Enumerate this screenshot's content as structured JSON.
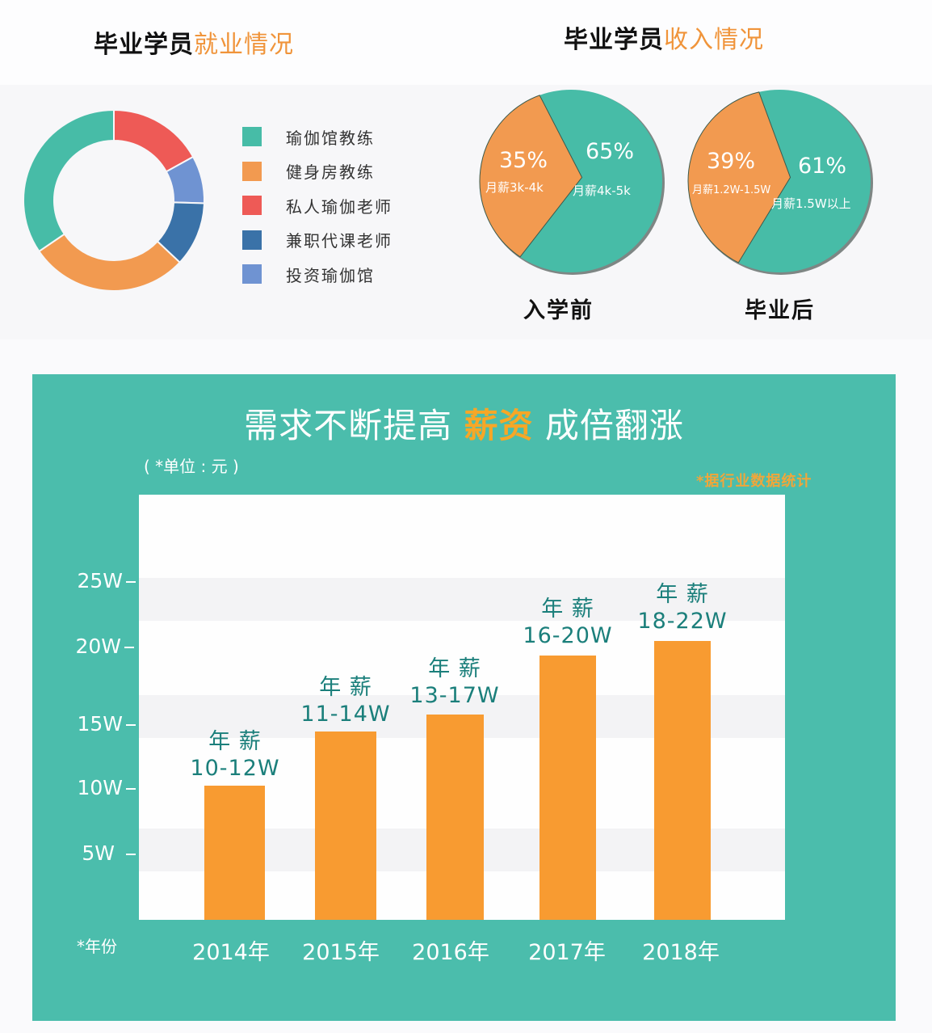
{
  "employment": {
    "title_prefix": "毕业学员",
    "title_highlight": "就业情况",
    "legend": [
      {
        "label": "瑜伽馆教练",
        "color": "#47bca7"
      },
      {
        "label": "健身房教练",
        "color": "#f29a50"
      },
      {
        "label": "私人瑜伽老师",
        "color": "#ee5a56"
      },
      {
        "label": "兼职代课老师",
        "color": "#3a72a8"
      },
      {
        "label": "投资瑜伽馆",
        "color": "#6f93d2"
      }
    ]
  },
  "income": {
    "title_prefix": "毕业学员",
    "title_highlight": "收入情况",
    "before": {
      "caption": "入学前",
      "slices": [
        {
          "pct": "35%",
          "label": "月薪3k-4k",
          "color": "#f29a50"
        },
        {
          "pct": "65%",
          "label": "月薪4k-5k",
          "color": "#47bca7"
        }
      ]
    },
    "after": {
      "caption": "毕业后",
      "slices": [
        {
          "pct": "39%",
          "label": "月薪1.2W-1.5W",
          "color": "#f29a50"
        },
        {
          "pct": "61%",
          "label": "月薪1.5W以上",
          "color": "#47bca7"
        }
      ]
    }
  },
  "salary": {
    "title_part1": "需求不断提高 ",
    "title_highlight": "薪资",
    "title_part2": " 成倍翻涨",
    "unit": "( *单位 : 元 )",
    "source": "*据行业数据统计",
    "x_axis_title": "*年份",
    "bar_color": "#f89b31",
    "panel_color": "#4bbdac",
    "label_prefix": "年 薪"
  },
  "chart_data": [
    {
      "type": "pie",
      "title": "毕业学员就业情况",
      "subtype": "donut",
      "categories": [
        "瑜伽馆教练",
        "健身房教练",
        "私人瑜伽老师",
        "兼职代课老师",
        "投资瑜伽馆"
      ],
      "values": [
        34.5,
        28.5,
        17,
        11.5,
        8.5
      ],
      "colors": [
        "#47bca7",
        "#f29a50",
        "#ee5a56",
        "#3a72a8",
        "#6f93d2"
      ],
      "legend_position": "right"
    },
    {
      "type": "pie",
      "title": "毕业学员收入情况 - 入学前",
      "categories": [
        "月薪3k-4k",
        "月薪4k-5k"
      ],
      "values": [
        35,
        65
      ],
      "colors": [
        "#f29a50",
        "#47bca7"
      ]
    },
    {
      "type": "pie",
      "title": "毕业学员收入情况 - 毕业后",
      "categories": [
        "月薪1.2W-1.5W",
        "月薪1.5W以上"
      ],
      "values": [
        39,
        61
      ],
      "colors": [
        "#f29a50",
        "#47bca7"
      ]
    },
    {
      "type": "bar",
      "title": "需求不断提高 薪资 成倍翻涨",
      "subtitle": "( *单位 : 元 )",
      "annotation": "*据行业数据统计",
      "xlabel": "*年份",
      "ylabel": "",
      "categories": [
        "2014年",
        "2015年",
        "2016年",
        "2017年",
        "2018年"
      ],
      "data_labels": [
        "10-12W",
        "11-14W",
        "13-17W",
        "16-20W",
        "18-22W"
      ],
      "values": [
        10.3,
        14.2,
        15.5,
        19.8,
        20.9
      ],
      "yticks": [
        "5W",
        "10W",
        "15W",
        "20W",
        "25W"
      ],
      "ylim": [
        0,
        27
      ],
      "grid": true
    }
  ]
}
